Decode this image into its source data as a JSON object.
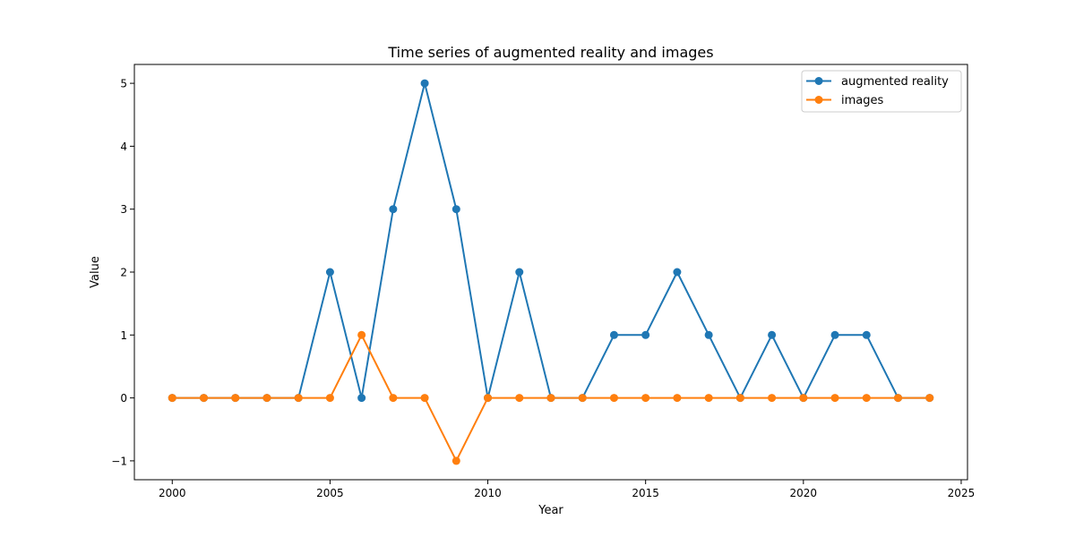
{
  "chart_data": {
    "type": "line",
    "title": "Time series of augmented reality and images",
    "xlabel": "Year",
    "ylabel": "Value",
    "x": [
      2000,
      2001,
      2002,
      2003,
      2004,
      2005,
      2006,
      2007,
      2008,
      2009,
      2010,
      2011,
      2012,
      2013,
      2014,
      2015,
      2016,
      2017,
      2018,
      2019,
      2020,
      2021,
      2022,
      2023,
      2024
    ],
    "series": [
      {
        "name": "augmented reality",
        "color": "#1f77b4",
        "values": [
          0,
          0,
          0,
          0,
          0,
          2,
          0,
          3,
          5,
          3,
          0,
          2,
          0,
          0,
          1,
          1,
          2,
          1,
          0,
          1,
          0,
          1,
          1,
          0,
          0
        ]
      },
      {
        "name": "images",
        "color": "#ff7f0e",
        "values": [
          0,
          0,
          0,
          0,
          0,
          0,
          1,
          0,
          0,
          -1,
          0,
          0,
          0,
          0,
          0,
          0,
          0,
          0,
          0,
          0,
          0,
          0,
          0,
          0,
          0
        ]
      }
    ],
    "xlim": [
      1998.8,
      2025.2
    ],
    "ylim": [
      -1.3,
      5.3
    ],
    "xticks": [
      "2000",
      "2005",
      "2010",
      "2015",
      "2020",
      "2025"
    ],
    "yticks": [
      "−1",
      "0",
      "1",
      "2",
      "3",
      "4",
      "5"
    ],
    "grid": false,
    "legend_position": "top-right",
    "marker": "circle"
  }
}
